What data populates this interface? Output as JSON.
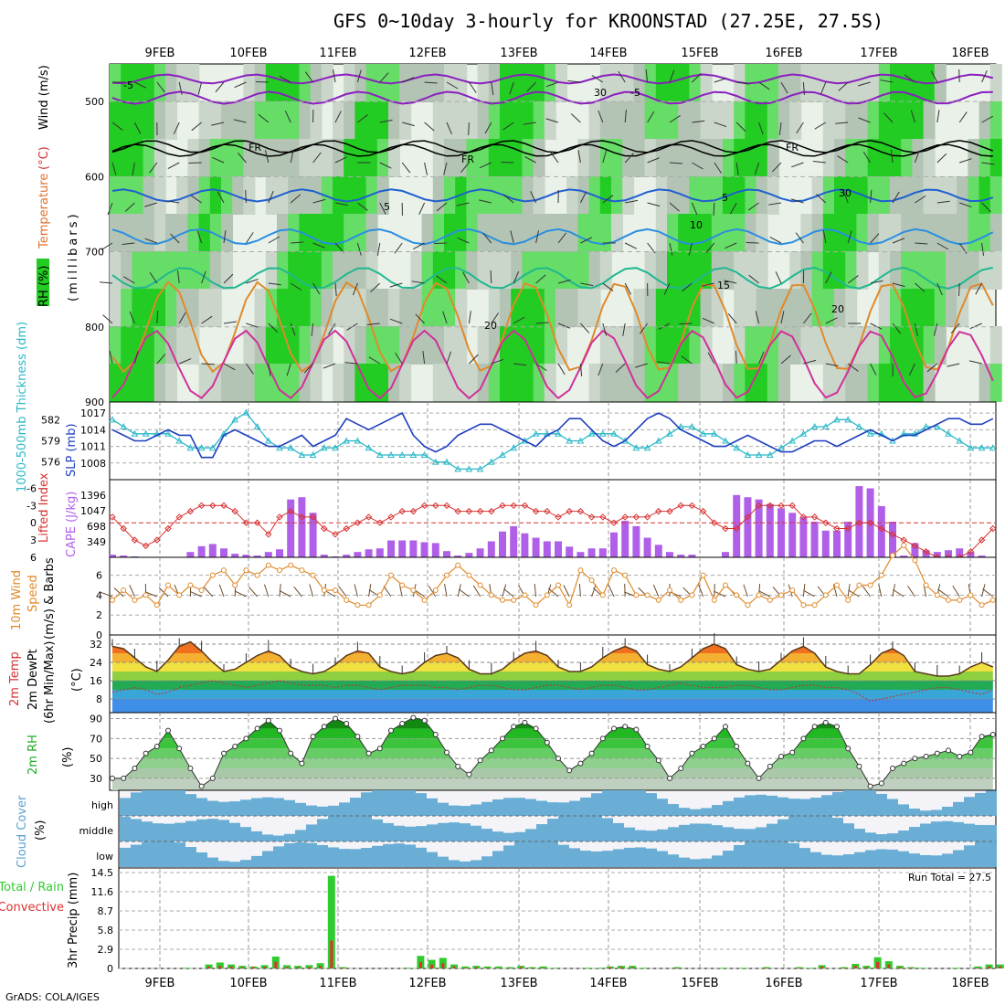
{
  "title": "GFS 0~10day 3-hourly for KROONSTAD (27.25E, 27.5S)",
  "credit": "GrADS: COLA/IGES",
  "dates": [
    "9FEB",
    "10FEB",
    "11FEB",
    "12FEB",
    "13FEB",
    "14FEB",
    "15FEB",
    "16FEB",
    "17FEB",
    "18FEB"
  ],
  "colors": {
    "rh": "#22cc22",
    "grey": "#b4c4b4",
    "temp": "#e08a2a",
    "slp": "#1f3fbf",
    "thick": "#2ab8c8",
    "cape": "#b060e8",
    "li": "#d83030",
    "cloud": "#6aaed6",
    "rain": "#2ecc2e",
    "conv": "#e03030"
  },
  "panels": {
    "upper": {
      "labels": {
        "rh": "RH (%)",
        "temperature": "Temperature",
        "unit_c": "(°C)",
        "wind": "Wind (m/s)",
        "millibars": "(millibars)"
      },
      "y_ticks": [
        "500",
        "600",
        "700",
        "800",
        "900"
      ],
      "contour_labels": [
        "-5",
        "-5",
        "FR",
        "FR",
        "FR",
        "5",
        "5",
        "10",
        "15",
        "20",
        "20",
        "30",
        "30"
      ]
    },
    "slp": {
      "labels": {
        "thickness": "1000-500mb Thickness (dm)",
        "slp": "SLP (mb)"
      },
      "left_ticks": [
        "582",
        "579",
        "576"
      ],
      "right_ticks": [
        "1017",
        "1014",
        "1011",
        "1008"
      ]
    },
    "cape": {
      "labels": {
        "li": "Lifted Index",
        "cape": "CAPE (J/kg)"
      },
      "left_ticks": [
        "-6",
        "-3",
        "0",
        "3",
        "6"
      ],
      "right_ticks": [
        "1396",
        "1047",
        "698",
        "349"
      ]
    },
    "wind": {
      "labels": {
        "line1": "10m Wind",
        "line2": "Speed",
        "line3": "(m/s) & Barbs"
      },
      "ticks": [
        "6",
        "4",
        "2",
        "0"
      ]
    },
    "temp": {
      "labels": {
        "line1": "2m Temp",
        "line2": "2m DewPt",
        "line3": "(6hr Min/Max)",
        "line4": "(°C)"
      },
      "ticks": [
        "32",
        "24",
        "16",
        "8"
      ]
    },
    "rh": {
      "labels": {
        "line1": "2m RH",
        "line2": "(%)"
      },
      "ticks": [
        "90",
        "70",
        "50",
        "30"
      ]
    },
    "cloud": {
      "labels": {
        "line1": "Cloud Cover",
        "line2": "(%)"
      },
      "levels": [
        "high",
        "middle",
        "low"
      ]
    },
    "precip": {
      "labels": {
        "rain": "Total / Rain",
        "convective": "Convective",
        "axis": "3hr Precip (mm)"
      },
      "ticks": [
        "14.5",
        "11.6",
        "8.7",
        "5.8",
        "2.9",
        "0"
      ],
      "run_total": "Run Total = 27.5"
    }
  },
  "chart_data": [
    {
      "type": "line",
      "title": "SLP (mb) and 1000-500mb Thickness (dm)",
      "series": [
        {
          "name": "SLP (mb)",
          "values": [
            1014,
            1013,
            1012,
            1012,
            1013,
            1014,
            1013,
            1013,
            1009,
            1009,
            1013,
            1014,
            1013,
            1012,
            1011,
            1011,
            1012,
            1013,
            1011,
            1012,
            1013,
            1016,
            1015,
            1014,
            1015,
            1016,
            1017,
            1013,
            1011,
            1010,
            1011,
            1013,
            1014,
            1015,
            1015,
            1014,
            1013,
            1012,
            1011,
            1013,
            1014,
            1016,
            1016,
            1014,
            1012,
            1011,
            1012,
            1014,
            1016,
            1017,
            1016,
            1014,
            1013,
            1012,
            1011,
            1011,
            1012,
            1013,
            1012,
            1011,
            1010,
            1010,
            1011,
            1012,
            1012,
            1011,
            1012,
            1013,
            1014,
            1013,
            1012,
            1013,
            1013,
            1014,
            1015,
            1016,
            1016,
            1015,
            1015,
            1016
          ]
        },
        {
          "name": "1000-500mb Thickness (dm)",
          "values": [
            582,
            581,
            580,
            580,
            580,
            580,
            579,
            578,
            578,
            578,
            580,
            582,
            583,
            581,
            579,
            578,
            578,
            577,
            577,
            578,
            578,
            579,
            579,
            578,
            577,
            577,
            577,
            577,
            577,
            576,
            576,
            575,
            575,
            575,
            576,
            577,
            578,
            579,
            580,
            580,
            580,
            579,
            579,
            580,
            580,
            580,
            579,
            578,
            578,
            579,
            580,
            581,
            581,
            580,
            580,
            579,
            578,
            577,
            577,
            577,
            578,
            579,
            580,
            581,
            581,
            582,
            582,
            581,
            580,
            580,
            579,
            580,
            580,
            581,
            581,
            580,
            579,
            578,
            578,
            578
          ]
        }
      ]
    },
    {
      "type": "bar",
      "title": "CAPE (J/kg) and Lifted Index",
      "series": [
        {
          "name": "CAPE (J/kg)",
          "values": [
            60,
            40,
            20,
            10,
            0,
            0,
            0,
            120,
            250,
            300,
            200,
            80,
            60,
            40,
            120,
            180,
            1300,
            1350,
            1000,
            60,
            20,
            60,
            120,
            180,
            200,
            380,
            380,
            380,
            340,
            320,
            140,
            40,
            100,
            200,
            360,
            580,
            700,
            540,
            440,
            360,
            360,
            240,
            120,
            200,
            200,
            560,
            820,
            700,
            440,
            280,
            120,
            60,
            60,
            0,
            0,
            120,
            1400,
            1350,
            1300,
            1200,
            1100,
            1000,
            900,
            800,
            600,
            600,
            800,
            1600,
            1550,
            1150,
            800,
            40,
            320,
            160,
            120,
            160,
            200,
            120,
            40,
            0
          ]
        },
        {
          "name": "Lifted Index",
          "values": [
            -1,
            1,
            3,
            4,
            3,
            1,
            -1,
            -2,
            -3,
            -3,
            -3,
            -2,
            0,
            0,
            2,
            -1,
            -2,
            -1,
            -1,
            1,
            2,
            1,
            0,
            -1,
            0,
            -1,
            -2,
            -2,
            -3,
            -3,
            -3,
            -2,
            -2,
            -2,
            -2,
            -3,
            -3,
            -3,
            -2,
            -2,
            -1,
            -2,
            -2,
            -1,
            -1,
            0,
            -1,
            -1,
            -1,
            -2,
            -2,
            -3,
            -3,
            -2,
            0,
            1,
            1,
            -1,
            -3,
            -3,
            -3,
            -3,
            -1,
            -1,
            0,
            1,
            1,
            0,
            0,
            1,
            2,
            3,
            4,
            5,
            6,
            6,
            6,
            5,
            3,
            1
          ]
        }
      ]
    },
    {
      "type": "line",
      "title": "10m Wind Speed (m/s)",
      "series": [
        {
          "name": "Speed",
          "values": [
            3.5,
            4.5,
            3.5,
            4,
            3,
            5,
            4,
            5,
            4.5,
            6,
            6.5,
            5,
            6.5,
            6,
            7,
            6.5,
            7,
            6.5,
            6,
            4.5,
            4.5,
            3.5,
            3,
            3,
            4,
            6,
            5,
            4.5,
            3.5,
            4.5,
            6,
            7,
            6,
            5,
            4,
            3.5,
            3.5,
            4,
            3,
            4,
            5,
            3,
            6.5,
            5.5,
            4,
            6.5,
            6,
            4,
            4,
            3.5,
            4.5,
            3.5,
            4,
            6,
            3.5,
            5,
            4,
            3,
            4,
            3.5,
            4,
            4.5,
            3,
            3,
            4,
            5,
            3.5,
            5,
            5,
            6,
            8,
            9,
            7.5,
            5,
            4,
            3.5,
            3.5,
            4,
            3,
            3.5
          ]
        }
      ]
    },
    {
      "type": "line",
      "title": "2m Temp and 2m DewPt (°C)",
      "series": [
        {
          "name": "2m Temp",
          "values": [
            31,
            30,
            26,
            22,
            20,
            25,
            31,
            33,
            29,
            24,
            20,
            21,
            24,
            27,
            29,
            27,
            22,
            20,
            19,
            20,
            23,
            27,
            29,
            28,
            22,
            20,
            19,
            20,
            24,
            27,
            28,
            26,
            21,
            19,
            19,
            21,
            25,
            28,
            29,
            27,
            22,
            20,
            20,
            22,
            26,
            29,
            31,
            29,
            23,
            21,
            20,
            22,
            26,
            30,
            32,
            30,
            23,
            21,
            20,
            21,
            25,
            29,
            31,
            28,
            22,
            20,
            19,
            19,
            23,
            28,
            30,
            27,
            20,
            19,
            18,
            18,
            19,
            22,
            24,
            22
          ]
        },
        {
          "name": "2m DewPt",
          "values": [
            11,
            12,
            13,
            12,
            10,
            11,
            13,
            14,
            15,
            16,
            15,
            14,
            13,
            14,
            15,
            16,
            15,
            14,
            14,
            14,
            13,
            14,
            14,
            13,
            12,
            13,
            14,
            14,
            14,
            13,
            13,
            12,
            13,
            14,
            14,
            13,
            12,
            12,
            13,
            14,
            14,
            13,
            12,
            13,
            14,
            14,
            13,
            12,
            12,
            13,
            14,
            15,
            14,
            13,
            13,
            13,
            14,
            14,
            13,
            12,
            12,
            13,
            14,
            14,
            13,
            13,
            12,
            10,
            7,
            8,
            9,
            10,
            11,
            12,
            13,
            13,
            12,
            11,
            10,
            12
          ]
        }
      ]
    },
    {
      "type": "line",
      "title": "2m RH (%)",
      "series": [
        {
          "name": "2m RH",
          "values": [
            30,
            30,
            40,
            55,
            62,
            78,
            60,
            40,
            22,
            30,
            55,
            62,
            70,
            80,
            88,
            78,
            55,
            45,
            72,
            82,
            90,
            85,
            72,
            55,
            60,
            78,
            85,
            91,
            88,
            74,
            56,
            42,
            34,
            48,
            58,
            70,
            82,
            86,
            80,
            66,
            50,
            38,
            45,
            55,
            70,
            80,
            82,
            79,
            62,
            48,
            30,
            40,
            55,
            62,
            70,
            82,
            62,
            45,
            30,
            42,
            52,
            56,
            70,
            82,
            86,
            82,
            60,
            42,
            22,
            25,
            40,
            45,
            50,
            52,
            55,
            58,
            52,
            56,
            72,
            74
          ]
        }
      ]
    },
    {
      "type": "bar",
      "title": "3hr Precip (mm)",
      "series": [
        {
          "name": "Total / Rain",
          "values": [
            0,
            0,
            0,
            0,
            0,
            0,
            0.1,
            0,
            0.6,
            0.9,
            0.6,
            0.4,
            0.3,
            0.5,
            1.8,
            0.5,
            0.4,
            0.5,
            0.8,
            14,
            0.2,
            0,
            0,
            0,
            0,
            0,
            0.1,
            1.9,
            1.3,
            1.6,
            0.6,
            0.3,
            0.4,
            0.3,
            0.3,
            0.2,
            0.4,
            0.2,
            0.3,
            0.1,
            0,
            0,
            0.1,
            0.1,
            0.3,
            0.4,
            0.4,
            0.1,
            0,
            0,
            0.2,
            0,
            0,
            0,
            0.1,
            0,
            0.1,
            0,
            0.2,
            0,
            0,
            0.2,
            0.1,
            0.5,
            0,
            0.2,
            0.7,
            0.4,
            1.7,
            1.1,
            0.4,
            0.2,
            0.1,
            0,
            0,
            0.1,
            0,
            0.3,
            0.6,
            0.6
          ]
        },
        {
          "name": "Convective",
          "values": [
            0,
            0,
            0,
            0,
            0,
            0,
            0,
            0,
            0.3,
            0.4,
            0.3,
            0.2,
            0.2,
            0.3,
            1,
            0.2,
            0.2,
            0.2,
            0.4,
            4.2,
            0.1,
            0,
            0,
            0,
            0,
            0,
            0,
            1,
            0.6,
            0.8,
            0.3,
            0.1,
            0.2,
            0.1,
            0.1,
            0.1,
            0.2,
            0.1,
            0.1,
            0,
            0,
            0,
            0,
            0,
            0.2,
            0.2,
            0.2,
            0,
            0,
            0,
            0.1,
            0,
            0,
            0,
            0,
            0,
            0,
            0,
            0.1,
            0,
            0,
            0.1,
            0,
            0.3,
            0,
            0.1,
            0.4,
            0.2,
            1,
            0.6,
            0.2,
            0.1,
            0,
            0,
            0,
            0,
            0,
            0.1,
            0.3,
            0.3
          ]
        }
      ]
    }
  ]
}
